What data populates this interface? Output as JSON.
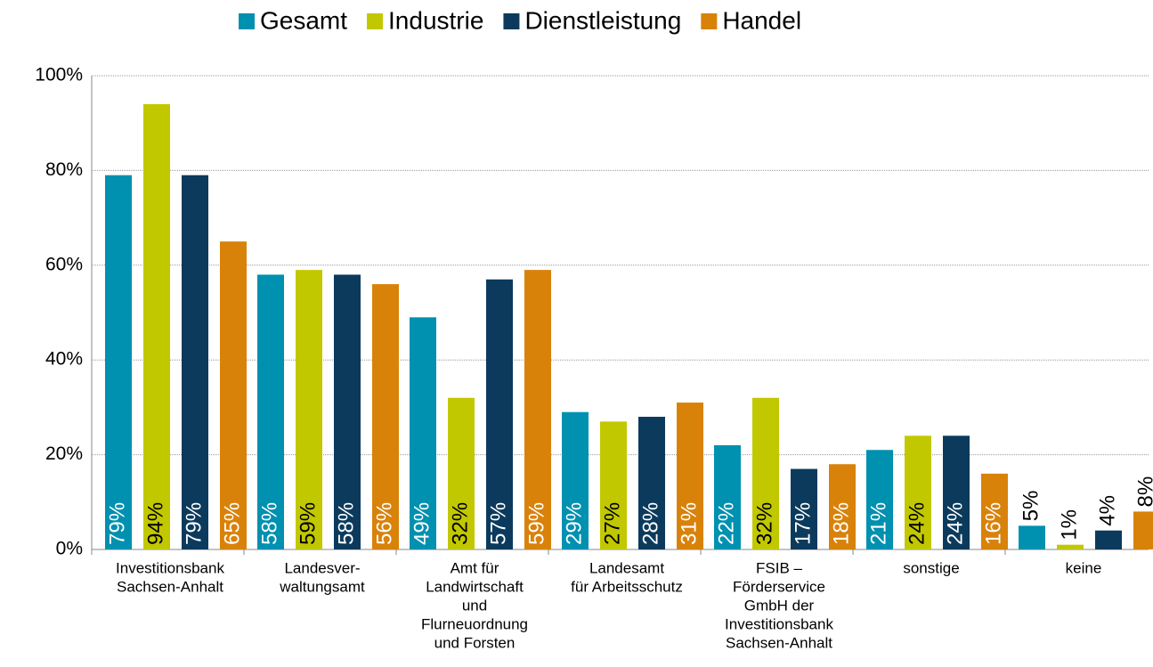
{
  "chart_data": {
    "type": "bar",
    "categories": [
      [
        "Investitionsbank",
        "Sachsen-Anhalt"
      ],
      [
        "Landesver-",
        "waltungsamt"
      ],
      [
        "Amt für",
        "Landwirtschaft",
        "und",
        "Flurneuordnung",
        "und Forsten"
      ],
      [
        "Landesamt",
        "für Arbeitsschutz"
      ],
      [
        "FSIB –",
        "Förderservice",
        "GmbH der",
        "Investitionsbank",
        "Sachsen-Anhalt"
      ],
      [
        "sonstige"
      ],
      [
        "keine"
      ]
    ],
    "series": [
      {
        "name": "Gesamt",
        "color": "#0090b0",
        "label_color": "#ffffff",
        "values": [
          79,
          58,
          49,
          29,
          22,
          21,
          5
        ],
        "value_labels": [
          "79%",
          "58%",
          "49%",
          "29%",
          "22%",
          "21%",
          "5%"
        ]
      },
      {
        "name": "Industrie",
        "color": "#c2c800",
        "label_color": "#000000",
        "values": [
          94,
          59,
          32,
          27,
          32,
          24,
          1
        ],
        "value_labels": [
          "94%",
          "59%",
          "32%",
          "27%",
          "32%",
          "24%",
          "1%"
        ]
      },
      {
        "name": "Dienstleistung",
        "color": "#0b3a5c",
        "label_color": "#ffffff",
        "values": [
          79,
          58,
          57,
          28,
          17,
          24,
          4
        ],
        "value_labels": [
          "79%",
          "58%",
          "57%",
          "28%",
          "17%",
          "24%",
          "4%"
        ]
      },
      {
        "name": "Handel",
        "color": "#d9820a",
        "label_color": "#ffffff",
        "values": [
          65,
          56,
          59,
          31,
          18,
          16,
          8
        ],
        "value_labels": [
          "65%",
          "56%",
          "59%",
          "31%",
          "18%",
          "16%",
          "8%"
        ]
      }
    ],
    "ylim": [
      0,
      100
    ],
    "yticks": [
      {
        "value": 0,
        "label": "0%"
      },
      {
        "value": 20,
        "label": "20%"
      },
      {
        "value": 40,
        "label": "40%"
      },
      {
        "value": 60,
        "label": "60%"
      },
      {
        "value": 80,
        "label": "80%"
      },
      {
        "value": 100,
        "label": "100%"
      }
    ],
    "grid": true,
    "legend": "top"
  }
}
